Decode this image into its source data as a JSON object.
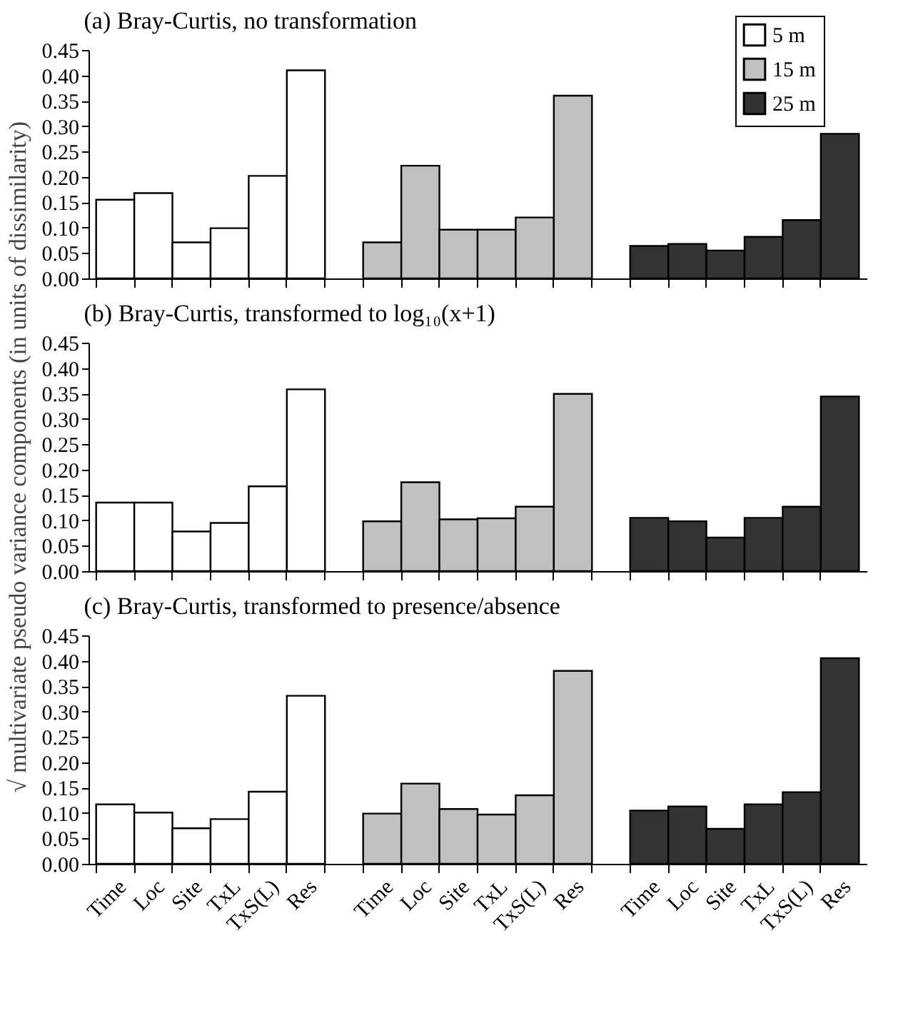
{
  "chart_data": [
    {
      "type": "bar",
      "title": "(a) Bray-Curtis, no transformation",
      "categories": [
        null,
        null,
        null,
        null,
        null,
        null,
        null,
        null,
        null,
        null,
        null,
        null,
        null,
        null,
        null,
        null,
        null,
        null,
        null,
        null
      ],
      "series": [
        {
          "name": "5 m",
          "color": "#ffffff",
          "values": [
            0.155,
            0.168,
            0.071,
            0.099,
            0.202,
            0.41,
            null,
            null,
            null,
            null,
            null,
            null,
            null,
            null,
            null,
            null,
            null,
            null,
            null,
            null
          ]
        },
        {
          "name": "15 m",
          "color": "#c0c0c0",
          "values": [
            null,
            null,
            null,
            null,
            null,
            null,
            null,
            0.071,
            0.222,
            0.096,
            0.096,
            0.12,
            0.36,
            null,
            null,
            null,
            null,
            null,
            null,
            null
          ]
        },
        {
          "name": "25 m",
          "color": "#333333",
          "values": [
            null,
            null,
            null,
            null,
            null,
            null,
            null,
            null,
            null,
            null,
            null,
            null,
            null,
            null,
            0.064,
            0.068,
            0.055,
            0.082,
            0.115,
            0.285
          ]
        }
      ],
      "ylim": [
        0,
        0.45
      ],
      "yticks": [
        {
          "value": 0,
          "label": "0.00"
        },
        {
          "value": 0.05,
          "label": "0.05"
        },
        {
          "value": 0.1,
          "label": "0.10"
        },
        {
          "value": 0.15,
          "label": "0.15"
        },
        {
          "value": 0.2,
          "label": "0.20"
        },
        {
          "value": 0.25,
          "label": "0.25"
        },
        {
          "value": 0.3,
          "label": "0.30"
        },
        {
          "value": 0.35,
          "label": "0.35"
        },
        {
          "value": 0.4,
          "label": "0.40"
        },
        {
          "value": 0.45,
          "label": "0.45"
        }
      ],
      "grid": false,
      "legend": "top right",
      "tick_labels": "y"
    },
    {
      "type": "bar",
      "title": "(b) Bray-Curtis, transformed to log₁₀(x+1)",
      "ylabel": "√ multivariate pseudo variance components (in units of dissimilarity)",
      "categories": [
        null,
        null,
        null,
        null,
        null,
        null,
        null,
        null,
        null,
        null,
        null,
        null,
        null,
        null,
        null,
        null,
        null,
        null,
        null,
        null
      ],
      "series": [
        {
          "color": "#ffffff",
          "values": [
            0.135,
            0.135,
            0.078,
            0.095,
            0.167,
            0.358,
            null,
            null,
            null,
            null,
            null,
            null,
            null,
            null,
            null,
            null,
            null,
            null,
            null,
            null
          ]
        },
        {
          "color": "#c0c0c0",
          "values": [
            null,
            null,
            null,
            null,
            null,
            null,
            null,
            0.098,
            0.175,
            0.102,
            0.104,
            0.127,
            0.349,
            null,
            null,
            null,
            null,
            null,
            null,
            null
          ]
        },
        {
          "color": "#333333",
          "values": [
            null,
            null,
            null,
            null,
            null,
            null,
            null,
            null,
            null,
            null,
            null,
            null,
            null,
            null,
            0.105,
            0.098,
            0.066,
            0.105,
            0.127,
            0.344
          ]
        }
      ],
      "ylim": [
        0,
        0.45
      ],
      "yticks": [
        {
          "value": 0,
          "label": "0.00"
        },
        {
          "value": 0.05,
          "label": "0.05"
        },
        {
          "value": 0.1,
          "label": "0.10"
        },
        {
          "value": 0.15,
          "label": "0.15"
        },
        {
          "value": 0.2,
          "label": "0.20"
        },
        {
          "value": 0.25,
          "label": "0.25"
        },
        {
          "value": 0.3,
          "label": "0.30"
        },
        {
          "value": 0.35,
          "label": "0.35"
        },
        {
          "value": 0.4,
          "label": "0.40"
        },
        {
          "value": 0.45,
          "label": "0.45"
        }
      ],
      "grid": false,
      "tick_labels": "y"
    },
    {
      "type": "bar",
      "title": "(c) Bray-Curtis, transformed to presence/absence",
      "categories": [
        "Time",
        "Loc",
        "Site",
        "TxL",
        "TxS(L)",
        "Res",
        null,
        "Time",
        "Loc",
        "Site",
        "TxL",
        "TxS(L)",
        "Res",
        null,
        "Time",
        "Loc",
        "Site",
        "TxL",
        "TxS(L)",
        "Res"
      ],
      "series": [
        {
          "color": "#ffffff",
          "values": [
            0.117,
            0.101,
            0.07,
            0.088,
            0.142,
            0.331,
            null,
            null,
            null,
            null,
            null,
            null,
            null,
            null,
            null,
            null,
            null,
            null,
            null,
            null
          ]
        },
        {
          "color": "#c0c0c0",
          "values": [
            null,
            null,
            null,
            null,
            null,
            null,
            null,
            0.099,
            0.158,
            0.108,
            0.097,
            0.135,
            0.38,
            null,
            null,
            null,
            null,
            null,
            null,
            null
          ]
        },
        {
          "color": "#333333",
          "values": [
            null,
            null,
            null,
            null,
            null,
            null,
            null,
            null,
            null,
            null,
            null,
            null,
            null,
            null,
            0.105,
            0.113,
            0.069,
            0.117,
            0.141,
            0.405
          ]
        }
      ],
      "ylim": [
        0,
        0.45
      ],
      "yticks": [
        {
          "value": 0,
          "label": "0.00"
        },
        {
          "value": 0.05,
          "label": "0.05"
        },
        {
          "value": 0.1,
          "label": "0.10"
        },
        {
          "value": 0.15,
          "label": "0.15"
        },
        {
          "value": 0.2,
          "label": "0.20"
        },
        {
          "value": 0.25,
          "label": "0.25"
        },
        {
          "value": 0.3,
          "label": "0.30"
        },
        {
          "value": 0.35,
          "label": "0.35"
        },
        {
          "value": 0.4,
          "label": "0.40"
        },
        {
          "value": 0.45,
          "label": "0.45"
        }
      ],
      "grid": false
    }
  ]
}
